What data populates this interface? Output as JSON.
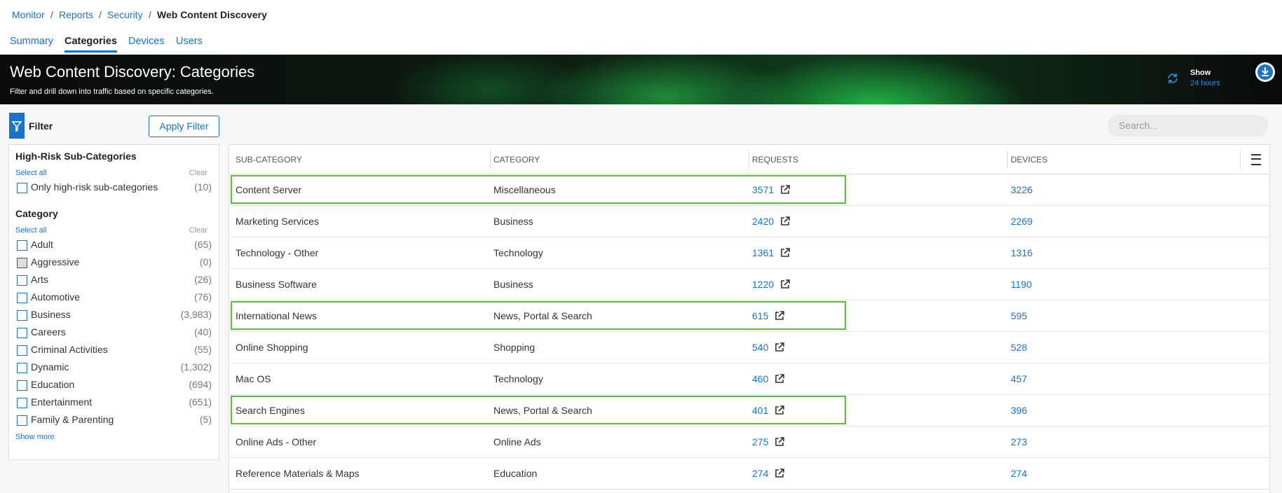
{
  "breadcrumb": {
    "items": [
      "Monitor",
      "Reports",
      "Security",
      "Web Content Discovery"
    ],
    "separator": "/"
  },
  "tabs": {
    "items": [
      "Summary",
      "Categories",
      "Devices",
      "Users"
    ],
    "active": 1
  },
  "banner": {
    "title": "Web Content Discovery: Categories",
    "subtitle": "Filter and drill down into traffic based on specific categories.",
    "show_label": "Show",
    "show_value": "24 hours"
  },
  "toolbar": {
    "filter_label": "Filter",
    "apply_button": "Apply Filter",
    "search_placeholder": "Search..."
  },
  "sidebar": {
    "sections": [
      {
        "title": "High-Risk Sub-Categories",
        "select_all": "Select all",
        "clear": "Clear",
        "items": [
          {
            "label": "Only high-risk sub-categories",
            "count": "(10)"
          }
        ]
      },
      {
        "title": "Category",
        "select_all": "Select all",
        "clear": "Clear",
        "items": [
          {
            "label": "Adult",
            "count": "(65)"
          },
          {
            "label": "Aggressive",
            "count": "(0)",
            "disabled": true
          },
          {
            "label": "Arts",
            "count": "(26)"
          },
          {
            "label": "Automotive",
            "count": "(76)"
          },
          {
            "label": "Business",
            "count": "(3,983)"
          },
          {
            "label": "Careers",
            "count": "(40)"
          },
          {
            "label": "Criminal Activities",
            "count": "(55)"
          },
          {
            "label": "Dynamic",
            "count": "(1,302)"
          },
          {
            "label": "Education",
            "count": "(694)"
          },
          {
            "label": "Entertainment",
            "count": "(651)"
          },
          {
            "label": "Family & Parenting",
            "count": "(5)"
          }
        ]
      }
    ],
    "show_more": "Show more"
  },
  "table": {
    "columns": [
      "SUB-CATEGORY",
      "CATEGORY",
      "REQUESTS",
      "DEVICES"
    ],
    "rows": [
      [
        "Content Server",
        "Miscellaneous",
        3571,
        3226
      ],
      [
        "Marketing Services",
        "Business",
        2420,
        2269
      ],
      [
        "Technology - Other",
        "Technology",
        1361,
        1316
      ],
      [
        "Business Software",
        "Business",
        1220,
        1190
      ],
      [
        "International News",
        "News, Portal & Search",
        615,
        595
      ],
      [
        "Online Shopping",
        "Shopping",
        540,
        528
      ],
      [
        "Mac OS",
        "Technology",
        460,
        457
      ],
      [
        "Search Engines",
        "News, Portal & Search",
        401,
        396
      ],
      [
        "Online Ads - Other",
        "Online Ads",
        275,
        273
      ],
      [
        "Reference Materials & Maps",
        "Education",
        274,
        274
      ]
    ],
    "highlighted_rows": [
      0,
      4,
      7
    ]
  }
}
